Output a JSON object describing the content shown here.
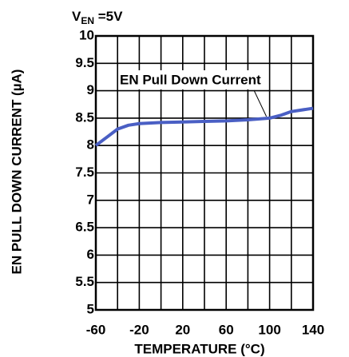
{
  "chart_data": {
    "type": "line",
    "subtitle": [
      "V",
      "EN",
      " =5V"
    ],
    "annotation": "EN Pull Down Current",
    "xlabel": "TEMPERATURE (°C)",
    "ylabel": "EN PULL DOWN CURRENT (µA)",
    "x": [
      -60,
      -50,
      -40,
      -30,
      -20,
      0,
      20,
      40,
      60,
      80,
      100,
      110,
      120,
      130,
      140
    ],
    "series": [
      {
        "name": "EN Pull Down Current",
        "color": "#4a5fc4",
        "values": [
          8.0,
          8.15,
          8.3,
          8.37,
          8.4,
          8.42,
          8.43,
          8.44,
          8.45,
          8.47,
          8.5,
          8.55,
          8.62,
          8.65,
          8.68
        ]
      }
    ],
    "xlim": [
      -60,
      140
    ],
    "xticks": [
      -60,
      -20,
      20,
      60,
      100,
      140
    ],
    "ylim": [
      5,
      10
    ],
    "yticks": [
      5,
      5.5,
      6,
      6.5,
      7,
      7.5,
      8,
      8.5,
      9,
      9.5,
      10
    ],
    "grid": true
  }
}
